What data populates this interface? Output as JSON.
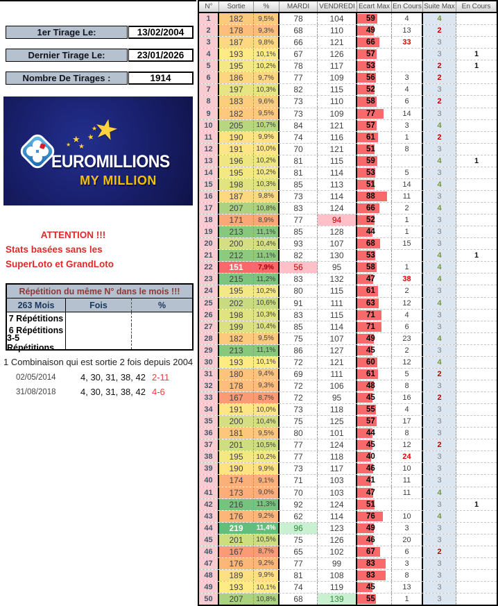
{
  "left_panel": {
    "first_draw": {
      "label": "1er Tirage Le:",
      "value": "13/02/2004"
    },
    "last_draw": {
      "label": "Dernier Tirage Le:",
      "value": "23/01/2026"
    },
    "draw_count": {
      "label": "Nombre De Tirages :",
      "value": "1914"
    },
    "logo": {
      "title": "EUROMILLIONS",
      "subtitle": "MY MILLION",
      "background_color": "#1a2170",
      "subtitle_color": "#F2C200",
      "star_color": "#FFD23E"
    },
    "attention": {
      "line1": "ATTENTION !!!",
      "line2": "Stats basées sans les",
      "line3": "SuperLoto et GrandLoto",
      "color": "#E22828"
    },
    "repetition_table": {
      "title": "Répétition du même N° dans le mois !!!",
      "headers": [
        "263 Mois",
        "Fois",
        "%"
      ],
      "rows": [
        "7 Répétitions",
        "6 Répétitions",
        "3-5 Répétitions"
      ]
    },
    "combination_note": {
      "title": "1 Combinaison qui est sortie 2 fois depuis 2004",
      "entries": [
        {
          "date": "02/05/2014",
          "numbers": "4, 30, 31, 38, 42",
          "stars": "2-11"
        },
        {
          "date": "31/08/2018",
          "numbers": "4, 30, 31, 38, 42",
          "stars": "4-6"
        }
      ],
      "stars_color": "#E84040"
    }
  },
  "table": {
    "headers": [
      "N°",
      "Sortie",
      "%",
      "MARDI",
      "VENDREDI",
      "Ecart Max",
      "En Cours",
      "Suite Max",
      "En Cours"
    ],
    "row_format": [
      "num",
      "sortie",
      "pct",
      "mardi",
      "vendredi",
      "ecart_max",
      "en_cours",
      "suite_max",
      "suite_en_cours"
    ],
    "color_scale": {
      "min": {
        "value": 151,
        "color": "#F8696B"
      },
      "mid": {
        "value": 193,
        "color": "#FFEB84"
      },
      "max": {
        "value": 219,
        "color": "#63BE7B"
      }
    },
    "ecart_bar_color": "#F8696B",
    "highlight": {
      "low_bg": "#FFC1C7",
      "low_text": "#C00000",
      "high_bg": "#C9F0D0",
      "high_text": "#2F8A3C"
    },
    "suite_colors": {
      "2": "#C00000",
      "3": "#808080",
      "4": "#77933C"
    },
    "en_cours_alert_color": "#E00000",
    "en_cours_alert_rows": [
      3,
      23,
      38
    ],
    "rows": [
      [
        1,
        182,
        "9,5%",
        78,
        104,
        59,
        "4",
        "4",
        ""
      ],
      [
        2,
        178,
        "9,3%",
        68,
        110,
        49,
        "13",
        "2",
        ""
      ],
      [
        3,
        187,
        "9,8%",
        66,
        121,
        66,
        "33",
        "3",
        ""
      ],
      [
        4,
        193,
        "10,1%",
        67,
        126,
        57,
        "",
        "3",
        "1"
      ],
      [
        5,
        195,
        "10,2%",
        78,
        117,
        53,
        "",
        "2",
        "1"
      ],
      [
        6,
        186,
        "9,7%",
        77,
        109,
        56,
        "3",
        "2",
        ""
      ],
      [
        7,
        197,
        "10,3%",
        82,
        115,
        52,
        "4",
        "3",
        ""
      ],
      [
        8,
        183,
        "9,6%",
        73,
        110,
        58,
        "6",
        "2",
        ""
      ],
      [
        9,
        182,
        "9,5%",
        73,
        109,
        77,
        "14",
        "3",
        ""
      ],
      [
        10,
        205,
        "10,7%",
        84,
        121,
        57,
        "3",
        "4",
        ""
      ],
      [
        11,
        190,
        "9,9%",
        74,
        116,
        61,
        "1",
        "2",
        ""
      ],
      [
        12,
        191,
        "10,0%",
        70,
        121,
        51,
        "8",
        "3",
        ""
      ],
      [
        13,
        196,
        "10,2%",
        81,
        115,
        59,
        "",
        "4",
        "1"
      ],
      [
        14,
        195,
        "10,2%",
        81,
        114,
        53,
        "5",
        "3",
        ""
      ],
      [
        15,
        198,
        "10,3%",
        85,
        113,
        51,
        "14",
        "4",
        ""
      ],
      [
        16,
        187,
        "9,8%",
        73,
        114,
        88,
        "11",
        "3",
        ""
      ],
      [
        17,
        207,
        "10,8%",
        83,
        124,
        66,
        "2",
        "4",
        ""
      ],
      [
        18,
        171,
        "8,9%",
        77,
        94,
        52,
        "1",
        "3",
        ""
      ],
      [
        19,
        213,
        "11,1%",
        85,
        128,
        44,
        "1",
        "3",
        ""
      ],
      [
        20,
        200,
        "10,4%",
        93,
        107,
        68,
        "15",
        "3",
        ""
      ],
      [
        21,
        212,
        "11,1%",
        82,
        130,
        53,
        "",
        "4",
        "1"
      ],
      [
        22,
        151,
        "7,9%",
        56,
        95,
        58,
        "1",
        "4",
        ""
      ],
      [
        23,
        215,
        "11,2%",
        83,
        132,
        47,
        "38",
        "4",
        ""
      ],
      [
        24,
        195,
        "10,2%",
        80,
        115,
        61,
        "2",
        "3",
        ""
      ],
      [
        25,
        202,
        "10,6%",
        91,
        111,
        63,
        "12",
        "4",
        ""
      ],
      [
        26,
        198,
        "10,3%",
        83,
        115,
        71,
        "4",
        "3",
        ""
      ],
      [
        27,
        199,
        "10,4%",
        85,
        114,
        71,
        "6",
        "3",
        ""
      ],
      [
        28,
        182,
        "9,5%",
        75,
        107,
        49,
        "23",
        "4",
        ""
      ],
      [
        29,
        213,
        "11,1%",
        86,
        127,
        45,
        "2",
        "3",
        ""
      ],
      [
        30,
        193,
        "10,1%",
        72,
        121,
        60,
        "12",
        "4",
        ""
      ],
      [
        31,
        180,
        "9,4%",
        69,
        111,
        61,
        "5",
        "2",
        ""
      ],
      [
        32,
        178,
        "9,3%",
        72,
        106,
        48,
        "8",
        "3",
        ""
      ],
      [
        33,
        167,
        "8,7%",
        72,
        95,
        45,
        "16",
        "2",
        ""
      ],
      [
        34,
        191,
        "10,0%",
        73,
        118,
        55,
        "4",
        "3",
        ""
      ],
      [
        35,
        200,
        "10,4%",
        75,
        125,
        57,
        "17",
        "3",
        ""
      ],
      [
        36,
        181,
        "9,5%",
        80,
        101,
        44,
        "8",
        "3",
        ""
      ],
      [
        37,
        201,
        "10,5%",
        77,
        124,
        45,
        "12",
        "2",
        ""
      ],
      [
        38,
        195,
        "10,2%",
        77,
        118,
        40,
        "24",
        "3",
        ""
      ],
      [
        39,
        190,
        "9,9%",
        73,
        117,
        46,
        "10",
        "3",
        ""
      ],
      [
        40,
        174,
        "9,1%",
        71,
        103,
        41,
        "11",
        "3",
        ""
      ],
      [
        41,
        173,
        "9,0%",
        70,
        103,
        47,
        "11",
        "4",
        ""
      ],
      [
        42,
        216,
        "11,3%",
        92,
        124,
        51,
        "",
        "3",
        "1"
      ],
      [
        43,
        176,
        "9,2%",
        62,
        114,
        76,
        "10",
        "4",
        ""
      ],
      [
        44,
        219,
        "11,4%",
        96,
        123,
        49,
        "3",
        "3",
        ""
      ],
      [
        45,
        201,
        "10,5%",
        75,
        126,
        46,
        "20",
        "3",
        ""
      ],
      [
        46,
        167,
        "8,7%",
        65,
        102,
        67,
        "6",
        "2",
        ""
      ],
      [
        47,
        176,
        "9,2%",
        77,
        99,
        83,
        "3",
        "3",
        ""
      ],
      [
        48,
        189,
        "9,9%",
        81,
        108,
        83,
        "8",
        "3",
        ""
      ],
      [
        49,
        193,
        "10,1%",
        74,
        119,
        45,
        "13",
        "3",
        ""
      ],
      [
        50,
        207,
        "10,8%",
        68,
        139,
        55,
        "1",
        "3",
        ""
      ]
    ]
  }
}
